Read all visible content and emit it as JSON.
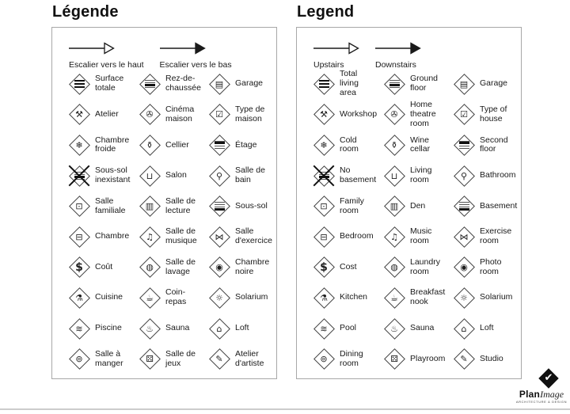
{
  "colors": {
    "ink": "#1a1a1a",
    "panel_border": "#a8a8a8",
    "bottom_rule": "#cccccc"
  },
  "panels": [
    {
      "id": "fr",
      "side": "left",
      "title": "Légende",
      "arrows": [
        {
          "icon": "stairs-up-arrow-icon",
          "style": "outline",
          "label": "Escalier vers le haut"
        },
        {
          "icon": "stairs-down-arrow-icon",
          "style": "filled",
          "label": "Escalier vers le bas"
        }
      ],
      "items": [
        {
          "icon": "total-area-icon",
          "label": "Surface\ntotale"
        },
        {
          "icon": "ground-floor-icon",
          "label": "Rez-de-\nchaussée"
        },
        {
          "icon": "garage-icon",
          "label": "Garage"
        },
        {
          "icon": "workshop-icon",
          "label": "Atelier"
        },
        {
          "icon": "home-theatre-icon",
          "label": "Cinéma\nmaison"
        },
        {
          "icon": "house-type-icon",
          "label": "Type de\nmaison"
        },
        {
          "icon": "cold-room-icon",
          "label": "Chambre\nfroide"
        },
        {
          "icon": "wine-cellar-icon",
          "label": "Cellier"
        },
        {
          "icon": "second-floor-icon",
          "label": "Étage"
        },
        {
          "icon": "no-basement-icon",
          "label": "Sous-sol\ninexistant",
          "crossed": true
        },
        {
          "icon": "living-room-icon",
          "label": "Salon"
        },
        {
          "icon": "bathroom-icon",
          "label": "Salle de\nbain"
        },
        {
          "icon": "family-room-icon",
          "label": "Salle\nfamiliale"
        },
        {
          "icon": "den-icon",
          "label": "Salle de\nlecture"
        },
        {
          "icon": "basement-icon",
          "label": "Sous-sol"
        },
        {
          "icon": "bedroom-icon",
          "label": "Chambre"
        },
        {
          "icon": "music-room-icon",
          "label": "Salle de\nmusique"
        },
        {
          "icon": "exercise-room-icon",
          "label": "Salle\nd'exercice"
        },
        {
          "icon": "cost-icon",
          "label": "Coût"
        },
        {
          "icon": "laundry-icon",
          "label": "Salle de\nlavage"
        },
        {
          "icon": "photo-room-icon",
          "label": "Chambre\nnoire"
        },
        {
          "icon": "kitchen-icon",
          "label": "Cuisine"
        },
        {
          "icon": "breakfast-icon",
          "label": "Coin-\nrepas"
        },
        {
          "icon": "solarium-icon",
          "label": "Solarium"
        },
        {
          "icon": "pool-icon",
          "label": "Piscine"
        },
        {
          "icon": "sauna-icon",
          "label": "Sauna"
        },
        {
          "icon": "loft-icon",
          "label": "Loft"
        },
        {
          "icon": "dining-room-icon",
          "label": "Salle à\nmanger"
        },
        {
          "icon": "playroom-icon",
          "label": "Salle de\njeux"
        },
        {
          "icon": "studio-icon",
          "label": "Atelier\nd'artiste"
        }
      ]
    },
    {
      "id": "en",
      "side": "right",
      "title": "Legend",
      "arrows": [
        {
          "icon": "stairs-up-arrow-icon",
          "style": "outline",
          "label": "Upstairs"
        },
        {
          "icon": "stairs-down-arrow-icon",
          "style": "filled",
          "label": "Downstairs"
        }
      ],
      "items": [
        {
          "icon": "total-area-icon",
          "label": "Total\nliving\narea"
        },
        {
          "icon": "ground-floor-icon",
          "label": "Ground\nfloor"
        },
        {
          "icon": "garage-icon",
          "label": "Garage"
        },
        {
          "icon": "workshop-icon",
          "label": "Workshop"
        },
        {
          "icon": "home-theatre-icon",
          "label": "Home\ntheatre\nroom"
        },
        {
          "icon": "house-type-icon",
          "label": "Type of\nhouse"
        },
        {
          "icon": "cold-room-icon",
          "label": "Cold\nroom"
        },
        {
          "icon": "wine-cellar-icon",
          "label": "Wine\ncellar"
        },
        {
          "icon": "second-floor-icon",
          "label": "Second\nfloor"
        },
        {
          "icon": "no-basement-icon",
          "label": "No\nbasement",
          "crossed": true
        },
        {
          "icon": "living-room-icon",
          "label": "Living\nroom"
        },
        {
          "icon": "bathroom-icon",
          "label": "Bathroom"
        },
        {
          "icon": "family-room-icon",
          "label": "Family\nroom"
        },
        {
          "icon": "den-icon",
          "label": "Den"
        },
        {
          "icon": "basement-icon",
          "label": "Basement"
        },
        {
          "icon": "bedroom-icon",
          "label": "Bedroom"
        },
        {
          "icon": "music-room-icon",
          "label": "Music\nroom"
        },
        {
          "icon": "exercise-room-icon",
          "label": "Exercise\nroom"
        },
        {
          "icon": "cost-icon",
          "label": "Cost"
        },
        {
          "icon": "laundry-icon",
          "label": "Laundry\nroom"
        },
        {
          "icon": "photo-room-icon",
          "label": "Photo\nroom"
        },
        {
          "icon": "kitchen-icon",
          "label": "Kitchen"
        },
        {
          "icon": "breakfast-icon",
          "label": "Breakfast\nnook"
        },
        {
          "icon": "solarium-icon",
          "label": "Solarium"
        },
        {
          "icon": "pool-icon",
          "label": "Pool"
        },
        {
          "icon": "sauna-icon",
          "label": "Sauna"
        },
        {
          "icon": "loft-icon",
          "label": "Loft"
        },
        {
          "icon": "dining-room-icon",
          "label": "Dining\nroom"
        },
        {
          "icon": "playroom-icon",
          "label": "Playroom"
        },
        {
          "icon": "studio-icon",
          "label": "Studio"
        }
      ]
    }
  ],
  "logo": {
    "plan": "Plan",
    "image": "Image",
    "tagline": "ARCHITECTURE & DESIGN",
    "mark_icon": "checkmark-icon"
  }
}
